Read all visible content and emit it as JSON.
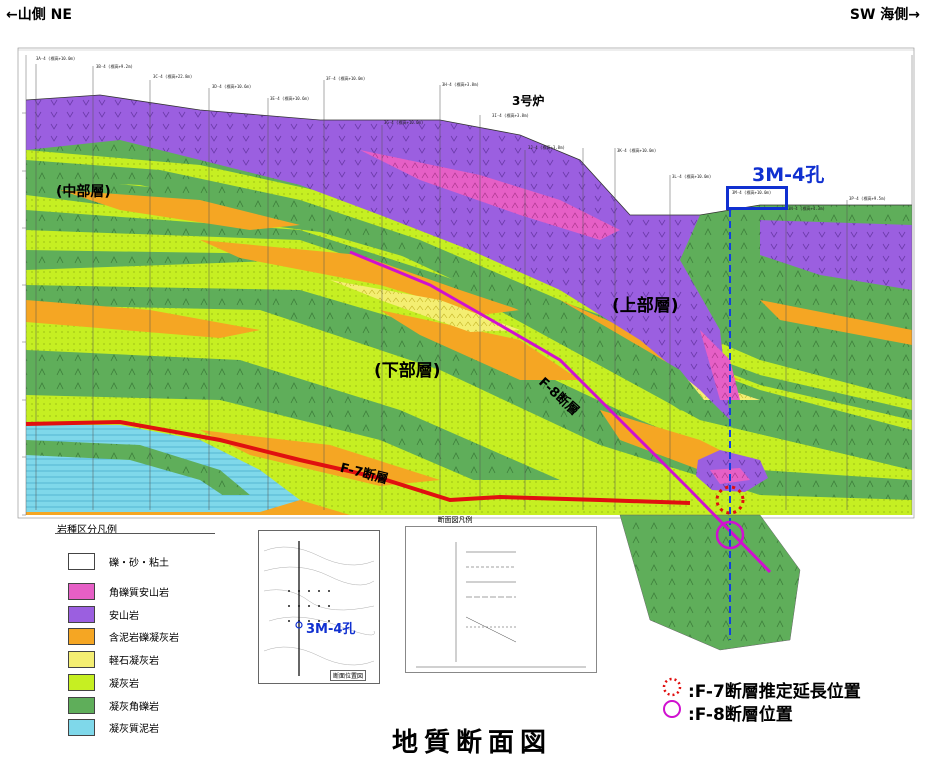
{
  "header": {
    "left": "←山側 NE",
    "right": "SW 海側→"
  },
  "section_labels": {
    "middle_layer": "(中部層)",
    "upper_layer": "(上部層)",
    "lower_layer": "(下部層)",
    "fault_f8": "F-8断層",
    "fault_f7": "F-7断層",
    "reactor": "3号炉",
    "target_hole": "3M-4孔",
    "map_hole": "3M-4孔"
  },
  "boreholes": [
    "3A-4 (標高+10.0m)",
    "3B-4 (標高+9.2m)",
    "3C-4 (標高+22.8m)",
    "3D-4 (標高+10.6m)",
    "3E-4 (標高+10.6m)",
    "3F-4 (標高+10.0m)",
    "3G-4 (標高+10.0m)",
    "3H-4 (標高+3.8m)",
    "3I-4 (標高+3.8m)",
    "3J-4 (標高+3.8m)",
    "3K-4 (標高+10.0m)",
    "3L-4 (標高+10.0m)",
    "3M-4 (標高+10.0m)",
    "3N-4 (標高+4.3m)",
    "3P-4 (標高+9.5m)"
  ],
  "legend": {
    "title": "岩種区分凡例",
    "items": [
      {
        "label": "礫・砂・粘土",
        "color": "#ffffff"
      },
      {
        "label": "角礫質安山岩",
        "color": "#e65fc6"
      },
      {
        "label": "安山岩",
        "color": "#9b5fe0"
      },
      {
        "label": "含泥岩礫凝灰岩",
        "color": "#f5a623"
      },
      {
        "label": "軽石凝灰岩",
        "color": "#f4ee72"
      },
      {
        "label": "凝灰岩",
        "color": "#c6ef22"
      },
      {
        "label": "凝灰角礫岩",
        "color": "#5fae5a"
      },
      {
        "label": "凝灰質泥岩",
        "color": "#7fd8ea"
      }
    ]
  },
  "section_legend": {
    "title": "断面図凡例"
  },
  "map": {
    "caption": "断面位置図"
  },
  "notes": [
    {
      "label": ":F-7断層推定延長位置",
      "marker": "dotted-circle"
    },
    {
      "label": ":F-8断層位置",
      "marker": "circle"
    }
  ],
  "figure_title": "地質断面図",
  "colors": {
    "andesite": "#9b5fe0",
    "breccia_andesite": "#e65fc6",
    "tuff_breccia": "#5fae5a",
    "tuff": "#c6ef22",
    "mudstone_tuff": "#f5a623",
    "mudstone": "#7fd8ea",
    "fault_f7": "#e01010",
    "fault_f8": "#d010d0",
    "hole_line": "#1040e0",
    "hole_box": "#1030d0"
  }
}
